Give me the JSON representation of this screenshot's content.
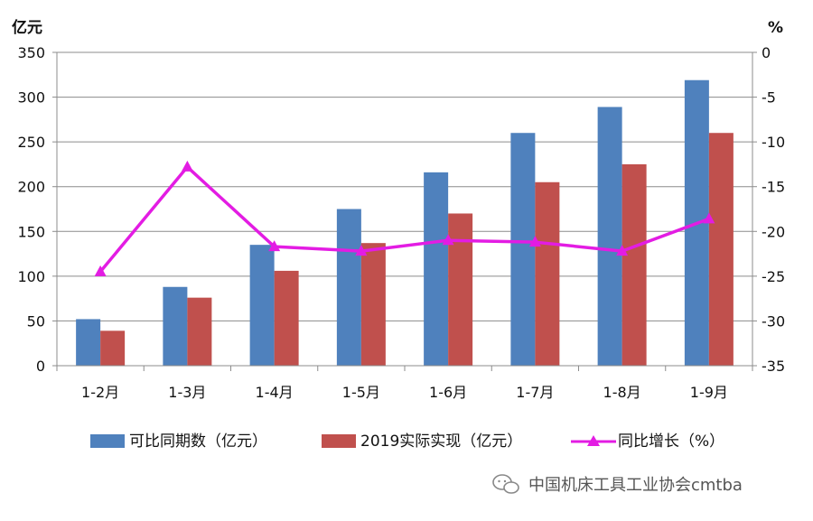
{
  "chart_data": {
    "type": "bar",
    "categories": [
      "1-2月",
      "1-3月",
      "1-4月",
      "1-5月",
      "1-6月",
      "1-7月",
      "1-8月",
      "1-9月"
    ],
    "series": [
      {
        "name": "可比同期数（亿元）",
        "type": "bar",
        "axis": "left",
        "color": "#4F81BD",
        "values": [
          52,
          88,
          135,
          175,
          216,
          260,
          289,
          319
        ]
      },
      {
        "name": "2019实际实现（亿元）",
        "type": "bar",
        "axis": "left",
        "color": "#C0504D",
        "values": [
          39,
          76,
          106,
          137,
          170,
          205,
          225,
          260
        ]
      },
      {
        "name": "同比增长（%）",
        "type": "line",
        "axis": "right",
        "color": "#E31CE3",
        "marker": "triangle",
        "values": [
          -24.5,
          -12.8,
          -21.7,
          -22.2,
          -21.0,
          -21.2,
          -22.2,
          -18.6
        ]
      }
    ],
    "y_left": {
      "label": "亿元",
      "ylim": [
        0,
        350
      ],
      "ticks": [
        "0",
        "50",
        "100",
        "150",
        "200",
        "250",
        "300",
        "350"
      ]
    },
    "y_right": {
      "label": "%",
      "ylim": [
        -35,
        0
      ],
      "ticks": [
        "-35",
        "-30",
        "-25",
        "-20",
        "-15",
        "-10",
        "-5",
        "0"
      ]
    },
    "grid": true,
    "legend_position": "bottom"
  },
  "watermark": {
    "text": "中国机床工具工业协会cmtba",
    "icon": "wechat-icon"
  }
}
